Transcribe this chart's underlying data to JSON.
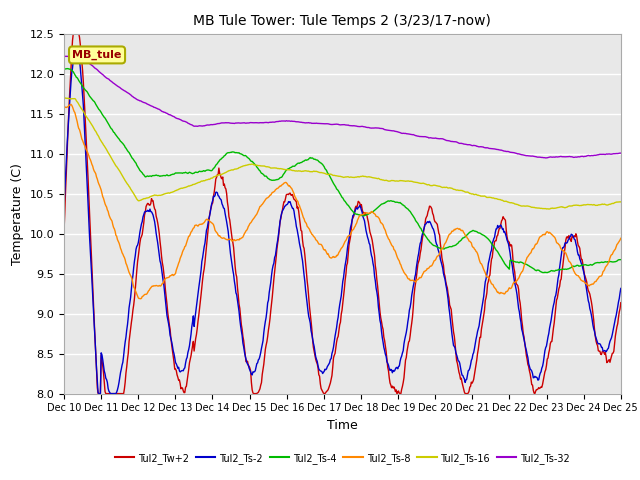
{
  "title": "MB Tule Tower: Tule Temps 2 (3/23/17-now)",
  "xlabel": "Time",
  "ylabel": "Temperature (C)",
  "ylim": [
    8.0,
    12.5
  ],
  "xlim": [
    0,
    15
  ],
  "background_color": "#ffffff",
  "plot_bg_color": "#e8e8e8",
  "grid_color": "#ffffff",
  "series": {
    "Tul2_Tw+2": {
      "color": "#cc0000",
      "lw": 1.0
    },
    "Tul2_Ts-2": {
      "color": "#0000cc",
      "lw": 1.0
    },
    "Tul2_Ts-4": {
      "color": "#00bb00",
      "lw": 1.0
    },
    "Tul2_Ts-8": {
      "color": "#ff8800",
      "lw": 1.0
    },
    "Tul2_Ts-16": {
      "color": "#cccc00",
      "lw": 1.0
    },
    "Tul2_Ts-32": {
      "color": "#9900cc",
      "lw": 1.0
    }
  },
  "legend_label": "MB_tule",
  "legend_box_facecolor": "#ffff99",
  "legend_box_edgecolor": "#aaaa00",
  "legend_text_color": "#990000",
  "tick_labels": [
    "Dec 10",
    "Dec 11",
    "Dec 12",
    "Dec 13",
    "Dec 14",
    "Dec 15",
    "Dec 16",
    "Dec 17",
    "Dec 18",
    "Dec 19",
    "Dec 20",
    "Dec 21",
    "Dec 22",
    "Dec 23",
    "Dec 24",
    "Dec 25"
  ],
  "yticks": [
    8.0,
    8.5,
    9.0,
    9.5,
    10.0,
    10.5,
    11.0,
    11.5,
    12.0,
    12.5
  ]
}
